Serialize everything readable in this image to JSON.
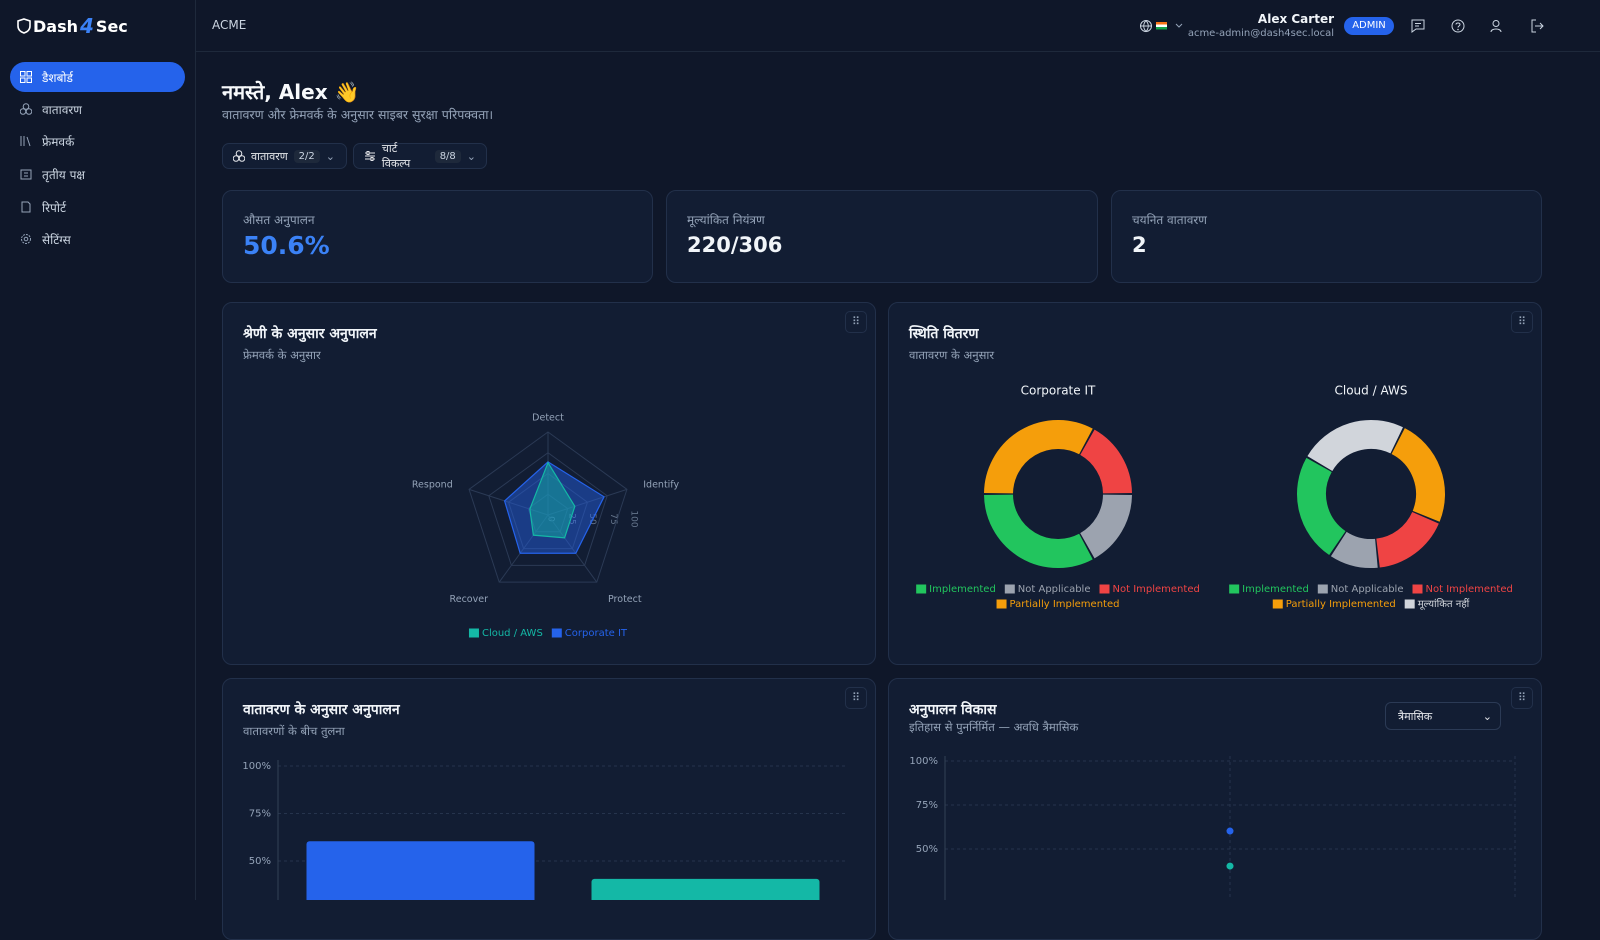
{
  "header": {
    "brand": [
      "Dash",
      "4",
      "Sec"
    ],
    "org": "ACME",
    "user_name": "Alex Carter",
    "user_email": "acme-admin@dash4sec.local",
    "role": "ADMIN"
  },
  "sidebar": {
    "items": [
      "डैशबोर्ड",
      "वातावरण",
      "फ्रेमवर्क",
      "तृतीय पक्ष",
      "रिपोर्ट",
      "सेटिंग्स"
    ]
  },
  "greeting": {
    "title": "नमस्ते, Alex 👋",
    "subtitle": "वातावरण और फ्रेमवर्क के अनुसार साइबर सुरक्षा परिपक्वता।"
  },
  "filters": [
    {
      "label": "वातावरण",
      "badge": "2/2"
    },
    {
      "label": "चार्ट विकल्प",
      "badge": "8/8"
    }
  ],
  "kpis": [
    {
      "label": "औसत अनुपालन",
      "value": "50.6%"
    },
    {
      "label": "मूल्यांकित नियंत्रण",
      "value": "220/306"
    },
    {
      "label": "चयनित वातावरण",
      "value": "2"
    }
  ],
  "panels": [
    {
      "title": "श्रेणी के अनुसार अनुपालन",
      "subtitle": "फ्रेमवर्क के अनुसार"
    },
    {
      "title": "स्थिति वितरण",
      "subtitle": "वातावरण के अनुसार"
    },
    {
      "title": "वातावरण के अनुसार अनुपालन",
      "subtitle": "वातावरणों के बीच तुलना"
    },
    {
      "title": "अनुपालन विकास",
      "subtitle": "इतिहास से पुनर्निर्मित — अवधि त्रैमासिक",
      "select": "त्रैमासिक"
    }
  ],
  "chart_data": [
    {
      "type": "radar",
      "categories": [
        "Detect",
        "Identify",
        "Protect",
        "Recover",
        "Respond"
      ],
      "series": [
        {
          "name": "Cloud / AWS",
          "color": "#14b8a6",
          "values": [
            63,
            34,
            34,
            30,
            23
          ]
        },
        {
          "name": "Corporate IT",
          "color": "#2563eb",
          "values": [
            64,
            71,
            57,
            57,
            55
          ]
        }
      ],
      "rlim": [
        0,
        100
      ],
      "rticks": [
        0,
        25,
        50,
        75,
        100
      ]
    },
    {
      "type": "donut",
      "title": "Corporate IT",
      "categories": [
        "Implemented",
        "Not Applicable",
        "Not Implemented",
        "Partially Implemented"
      ],
      "values": [
        33,
        17,
        17,
        33
      ],
      "colors": [
        "#22c55e",
        "#9ca3af",
        "#ef4444",
        "#f59e0b"
      ]
    },
    {
      "type": "donut",
      "title": "Cloud / AWS",
      "categories": [
        "Implemented",
        "Not Applicable",
        "Not Implemented",
        "Partially Implemented",
        "मूल्यांकित नहीं"
      ],
      "values": [
        24,
        11,
        17,
        24,
        24
      ],
      "colors": [
        "#22c55e",
        "#9ca3af",
        "#ef4444",
        "#f59e0b",
        "#d1d5db"
      ]
    },
    {
      "type": "bar",
      "categories": [
        null,
        null
      ],
      "values": [
        60.4,
        40.6
      ],
      "colors": [
        "#2563eb",
        "#14b8a6"
      ],
      "ylim": [
        0,
        100
      ],
      "yticks": [
        {
          "value": 50,
          "label": "50%"
        },
        {
          "value": 75,
          "label": "75%"
        },
        {
          "value": 100,
          "label": "100%"
        }
      ],
      "grid": true
    },
    {
      "type": "line",
      "categories": [
        null
      ],
      "series": [
        {
          "color": "#2563eb",
          "values": [
            60.2
          ]
        },
        {
          "color": "#14b8a6",
          "values": [
            40.3
          ]
        }
      ],
      "ylim": [
        0,
        100
      ],
      "yticks": [
        {
          "value": 50,
          "label": "50%"
        },
        {
          "value": 75,
          "label": "75%"
        },
        {
          "value": 100,
          "label": "100%"
        }
      ],
      "grid": true
    }
  ]
}
